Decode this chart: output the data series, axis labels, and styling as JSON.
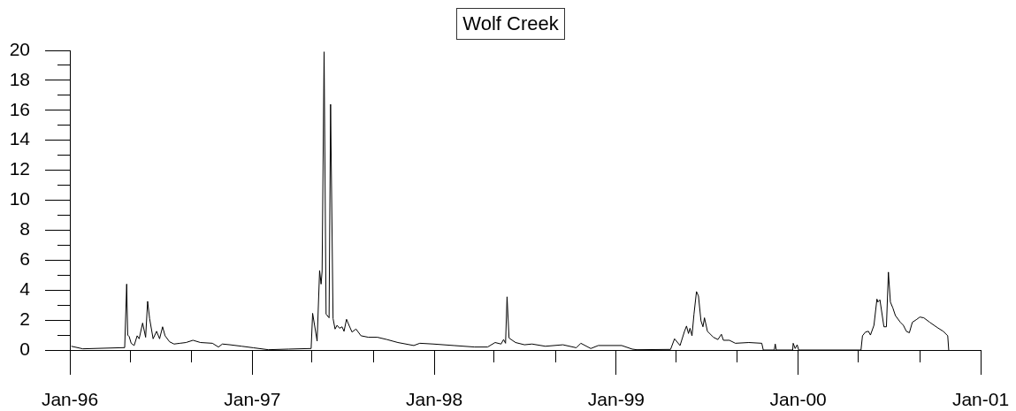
{
  "chart_data": {
    "type": "line",
    "title": "Wolf Creek",
    "color": "#000000",
    "x": [
      "1996-01-04",
      "1996-01-27",
      "1996-04-20",
      "1996-04-24",
      "1996-04-26",
      "1996-04-29",
      "1996-05-03",
      "1996-05-09",
      "1996-05-15",
      "1996-05-19",
      "1996-05-26",
      "1996-06-01",
      "1996-06-05",
      "1996-06-09",
      "1996-06-16",
      "1996-06-23",
      "1996-06-29",
      "1996-07-05",
      "1996-07-10",
      "1996-07-19",
      "1996-07-28",
      "1996-08-09",
      "1996-08-21",
      "1996-09-04",
      "1996-09-19",
      "1996-10-13",
      "1996-10-25",
      "1996-11-02",
      "1996-11-17",
      "1996-12-11",
      "1997-01-03",
      "1997-02-02",
      "1997-03-15",
      "1997-04-29",
      "1997-05-02",
      "1997-05-11",
      "1997-05-16",
      "1997-05-19",
      "1997-05-21",
      "1997-05-25",
      "1997-05-29",
      "1997-06-04",
      "1997-06-07",
      "1997-06-12",
      "1997-06-16",
      "1997-06-20",
      "1997-06-25",
      "1997-06-30",
      "1997-07-04",
      "1997-07-09",
      "1997-07-14",
      "1997-07-20",
      "1997-07-28",
      "1997-08-07",
      "1997-08-22",
      "1997-09-09",
      "1997-09-28",
      "1997-10-20",
      "1997-11-21",
      "1997-12-03",
      "1997-12-30",
      "1998-02-09",
      "1998-03-23",
      "1998-04-18",
      "1998-05-03",
      "1998-05-15",
      "1998-05-20",
      "1998-05-24",
      "1998-05-27",
      "1998-05-31",
      "1998-06-13",
      "1998-07-01",
      "1998-07-16",
      "1998-08-12",
      "1998-09-16",
      "1998-10-13",
      "1998-10-22",
      "1998-11-11",
      "1998-11-26",
      "1999-01-12",
      "1999-02-02",
      "1999-02-11",
      "1999-04-20",
      "1999-04-28",
      "1999-05-09",
      "1999-05-18",
      "1999-05-22",
      "1999-05-26",
      "1999-05-29",
      "1999-06-02",
      "1999-06-06",
      "1999-06-11",
      "1999-06-15",
      "1999-06-20",
      "1999-06-24",
      "1999-06-27",
      "1999-07-03",
      "1999-07-15",
      "1999-07-24",
      "1999-07-31",
      "1999-08-04",
      "1999-08-16",
      "1999-08-28",
      "1999-09-24",
      "1999-10-20",
      "1999-10-23",
      "1999-11-14",
      "1999-11-16",
      "1999-11-18",
      "1999-12-21",
      "1999-12-22",
      "1999-12-26",
      "1999-12-30",
      "2000-01-02",
      "2000-05-06",
      "2000-05-09",
      "2000-05-15",
      "2000-05-21",
      "2000-05-25",
      "2000-06-01",
      "2000-06-07",
      "2000-06-09",
      "2000-06-13",
      "2000-06-21",
      "2000-06-26",
      "2000-06-30",
      "2000-07-04",
      "2000-07-09",
      "2000-07-14",
      "2000-07-24",
      "2000-07-30",
      "2000-08-05",
      "2000-08-11",
      "2000-08-17",
      "2000-08-26",
      "2000-09-01",
      "2000-09-09",
      "2000-09-21",
      "2000-10-06",
      "2000-10-18",
      "2000-10-27",
      "2000-10-29"
    ],
    "values": [
      0.25,
      0.08,
      0.16,
      4.4,
      1.0,
      0.9,
      0.45,
      0.3,
      0.95,
      0.75,
      1.8,
      0.85,
      3.25,
      2.1,
      0.75,
      1.25,
      0.75,
      1.55,
      0.95,
      0.55,
      0.4,
      0.45,
      0.5,
      0.65,
      0.5,
      0.45,
      0.2,
      0.4,
      0.35,
      0.25,
      0.15,
      0.02,
      0.06,
      0.1,
      2.45,
      0.6,
      5.3,
      4.4,
      5.25,
      19.9,
      2.4,
      2.15,
      16.4,
      2.1,
      1.4,
      1.65,
      1.45,
      1.55,
      1.25,
      2.05,
      1.65,
      1.2,
      1.4,
      0.95,
      0.85,
      0.85,
      0.7,
      0.5,
      0.3,
      0.45,
      0.4,
      0.3,
      0.2,
      0.2,
      0.5,
      0.4,
      0.7,
      0.45,
      3.55,
      0.8,
      0.5,
      0.35,
      0.4,
      0.25,
      0.35,
      0.15,
      0.45,
      0.1,
      0.3,
      0.3,
      0.06,
      0.02,
      0.04,
      0.75,
      0.3,
      1.25,
      1.6,
      1.1,
      1.45,
      0.95,
      2.4,
      3.9,
      3.6,
      1.95,
      1.55,
      2.15,
      1.25,
      0.85,
      0.7,
      1.05,
      0.65,
      0.65,
      0.45,
      0.5,
      0.45,
      0,
      0,
      0.4,
      0,
      0,
      0.45,
      0.1,
      0.35,
      0,
      0,
      0.95,
      1.2,
      1.25,
      1.0,
      1.65,
      3.4,
      3.2,
      3.35,
      1.55,
      1.55,
      5.2,
      3.2,
      2.8,
      2.3,
      1.85,
      1.65,
      1.25,
      1.15,
      1.85,
      2.05,
      2.2,
      2.15,
      1.85,
      1.5,
      1.25,
      0.95,
      0
    ],
    "xlim": [
      "1996-01-01",
      "2001-01-01"
    ],
    "xticks": [
      {
        "value": "1996-01-01",
        "label": "Jan-96"
      },
      {
        "value": "1996-05-01",
        "label": null
      },
      {
        "value": "1996-09-01",
        "label": null
      },
      {
        "value": "1997-01-01",
        "label": "Jan-97"
      },
      {
        "value": "1997-05-01",
        "label": null
      },
      {
        "value": "1997-09-01",
        "label": null
      },
      {
        "value": "1998-01-01",
        "label": "Jan-98"
      },
      {
        "value": "1998-05-01",
        "label": null
      },
      {
        "value": "1998-09-01",
        "label": null
      },
      {
        "value": "1999-01-01",
        "label": "Jan-99"
      },
      {
        "value": "1999-05-01",
        "label": null
      },
      {
        "value": "1999-09-01",
        "label": null
      },
      {
        "value": "2000-01-01",
        "label": "Jan-00"
      },
      {
        "value": "2000-05-01",
        "label": null
      },
      {
        "value": "2000-09-01",
        "label": null
      },
      {
        "value": "2001-01-01",
        "label": "Jan-01"
      }
    ],
    "ylim": [
      0,
      20
    ],
    "yticks": [
      0,
      {
        "value": 1,
        "label": null
      },
      2,
      {
        "value": 3,
        "label": null
      },
      4,
      {
        "value": 5,
        "label": null
      },
      6,
      {
        "value": 7,
        "label": null
      },
      8,
      {
        "value": 9,
        "label": null
      },
      10,
      {
        "value": 11,
        "label": null
      },
      12,
      {
        "value": 13,
        "label": null
      },
      14,
      {
        "value": 15,
        "label": null
      },
      16,
      {
        "value": 17,
        "label": null
      },
      18,
      {
        "value": 19,
        "label": null
      },
      20
    ]
  }
}
